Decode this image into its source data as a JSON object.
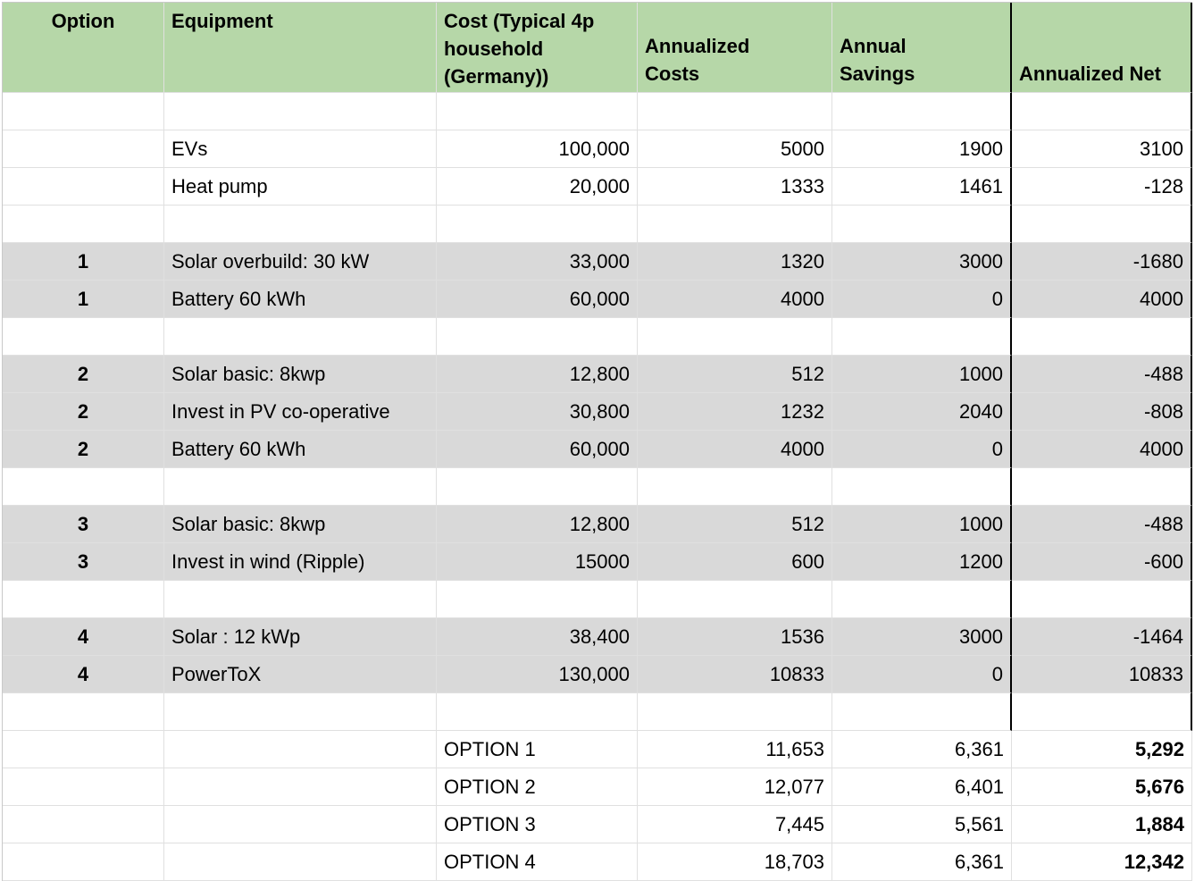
{
  "colors": {
    "header_bg": "#b6d7a8",
    "option_row_bg": "#d9d9d9",
    "gridline": "#e0e0e0",
    "frame": "#c9c9c9",
    "border_black": "#000000"
  },
  "table": {
    "columns": [
      {
        "key": "option",
        "label": "Option"
      },
      {
        "key": "equipment",
        "label": "Equipment"
      },
      {
        "key": "cost",
        "label": "Cost (Typical 4p\nhousehold\n(Germany))"
      },
      {
        "key": "annualized-costs",
        "label": "Annualized\nCosts"
      },
      {
        "key": "annual-savings",
        "label": "Annual\nSavings"
      },
      {
        "key": "annualized-net",
        "label": "Annualized Net"
      }
    ],
    "rows": [
      {
        "kind": "blank",
        "bg": "white",
        "thick": true,
        "cells": [
          "",
          "",
          "",
          "",
          "",
          ""
        ]
      },
      {
        "kind": "data",
        "bg": "white",
        "thick": true,
        "cells": [
          "",
          "EVs",
          "100,000",
          "5000",
          "1900",
          "3100"
        ]
      },
      {
        "kind": "data",
        "bg": "white",
        "thick": true,
        "cells": [
          "",
          "Heat pump",
          "20,000",
          "1333",
          "1461",
          "-128"
        ]
      },
      {
        "kind": "blank",
        "bg": "white",
        "thick": true,
        "cells": [
          "",
          "",
          "",
          "",
          "",
          ""
        ]
      },
      {
        "kind": "data",
        "bg": "gray",
        "thick": true,
        "cells": [
          "1",
          "Solar overbuild: 30 kW",
          "33,000",
          "1320",
          "3000",
          "-1680"
        ]
      },
      {
        "kind": "data",
        "bg": "gray",
        "thick": true,
        "cells": [
          "1",
          "Battery 60 kWh",
          "60,000",
          "4000",
          "0",
          "4000"
        ]
      },
      {
        "kind": "blank",
        "bg": "white",
        "thick": true,
        "cells": [
          "",
          "",
          "",
          "",
          "",
          ""
        ]
      },
      {
        "kind": "data",
        "bg": "gray",
        "thick": true,
        "cells": [
          "2",
          "Solar basic: 8kwp",
          "12,800",
          "512",
          "1000",
          "-488"
        ]
      },
      {
        "kind": "data",
        "bg": "gray",
        "thick": true,
        "cells": [
          "2",
          "Invest in PV co-operative",
          "30,800",
          "1232",
          "2040",
          "-808"
        ]
      },
      {
        "kind": "data",
        "bg": "gray",
        "thick": true,
        "cells": [
          "2",
          "Battery 60 kWh",
          "60,000",
          "4000",
          "0",
          "4000"
        ]
      },
      {
        "kind": "blank",
        "bg": "white",
        "thick": true,
        "cells": [
          "",
          "",
          "",
          "",
          "",
          ""
        ]
      },
      {
        "kind": "data",
        "bg": "gray",
        "thick": true,
        "cells": [
          "3",
          "Solar basic: 8kwp",
          "12,800",
          "512",
          "1000",
          "-488"
        ]
      },
      {
        "kind": "data",
        "bg": "gray",
        "thick": true,
        "cells": [
          "3",
          "Invest in wind (Ripple)",
          "15000",
          "600",
          "1200",
          "-600"
        ]
      },
      {
        "kind": "blank",
        "bg": "white",
        "thick": true,
        "cells": [
          "",
          "",
          "",
          "",
          "",
          ""
        ]
      },
      {
        "kind": "data",
        "bg": "gray",
        "thick": true,
        "cells": [
          "4",
          "Solar : 12 kWp",
          "38,400",
          "1536",
          "3000",
          "-1464"
        ]
      },
      {
        "kind": "data",
        "bg": "gray",
        "thick": true,
        "cells": [
          "4",
          "PowerToX",
          "130,000",
          "10833",
          "0",
          "10833"
        ]
      },
      {
        "kind": "blank",
        "bg": "white",
        "thick": true,
        "cells": [
          "",
          "",
          "",
          "",
          "",
          ""
        ]
      },
      {
        "kind": "summary",
        "bg": "white",
        "thick": false,
        "cells": [
          "",
          "",
          "OPTION 1",
          "11,653",
          "6,361",
          "5,292"
        ]
      },
      {
        "kind": "summary",
        "bg": "white",
        "thick": false,
        "cells": [
          "",
          "",
          "OPTION 2",
          "12,077",
          "6,401",
          "5,676"
        ]
      },
      {
        "kind": "summary",
        "bg": "white",
        "thick": false,
        "cells": [
          "",
          "",
          "OPTION 3",
          "7,445",
          "5,561",
          "1,884"
        ]
      },
      {
        "kind": "summary",
        "bg": "white",
        "thick": false,
        "cells": [
          "",
          "",
          "OPTION 4",
          "18,703",
          "6,361",
          "12,342"
        ]
      }
    ]
  }
}
